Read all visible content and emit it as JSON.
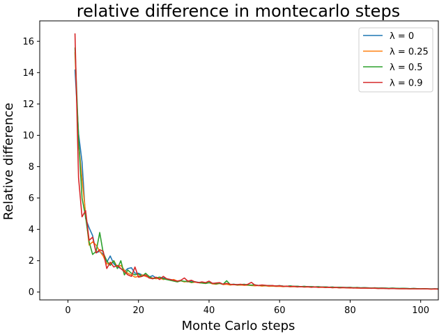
{
  "chart_data": {
    "type": "line",
    "title": "relative difference in montecarlo steps",
    "xlabel": "Monte Carlo steps",
    "ylabel": "Relative difference",
    "xlim": [
      -8,
      105
    ],
    "ylim": [
      -0.5,
      17.3
    ],
    "xticks": [
      0,
      20,
      40,
      60,
      80,
      100
    ],
    "yticks": [
      0,
      2,
      4,
      6,
      8,
      10,
      12,
      14,
      16
    ],
    "grid": false,
    "legend_position": "top-right",
    "x": [
      2,
      3,
      4,
      5,
      6,
      7,
      8,
      9,
      10,
      11,
      12,
      13,
      14,
      15,
      16,
      17,
      18,
      19,
      20,
      21,
      22,
      23,
      24,
      25,
      26,
      27,
      28,
      29,
      30,
      31,
      32,
      33,
      34,
      35,
      36,
      37,
      38,
      39,
      40,
      41,
      42,
      43,
      44,
      45,
      46,
      47,
      48,
      49,
      50,
      51,
      52,
      53,
      54,
      55,
      56,
      57,
      58,
      59,
      60,
      61,
      62,
      63,
      64,
      65,
      66,
      67,
      68,
      69,
      70,
      71,
      72,
      73,
      74,
      75,
      76,
      77,
      78,
      79,
      80,
      81,
      82,
      83,
      84,
      85,
      86,
      87,
      88,
      89,
      90,
      91,
      92,
      93,
      94,
      95,
      96,
      97,
      98,
      99,
      100,
      101,
      102,
      103,
      104,
      105
    ],
    "series": [
      {
        "name": "λ = 0",
        "color": "#1f77b4",
        "values": [
          14.2,
          10.1,
          8.3,
          4.7,
          4.1,
          3.6,
          2.5,
          2.6,
          2.4,
          1.9,
          2.3,
          1.8,
          1.6,
          1.5,
          1.3,
          1.5,
          1.55,
          1.2,
          1.2,
          1.1,
          1.0,
          0.95,
          1.05,
          0.9,
          0.95,
          0.9,
          0.85,
          0.8,
          0.75,
          0.7,
          0.72,
          0.68,
          0.65,
          0.7,
          0.66,
          0.62,
          0.6,
          0.58,
          0.6,
          0.56,
          0.54,
          0.55,
          0.5,
          0.52,
          0.48,
          0.5,
          0.47,
          0.46,
          0.48,
          0.45,
          0.44,
          0.46,
          0.42,
          0.43,
          0.41,
          0.42,
          0.4,
          0.39,
          0.41,
          0.38,
          0.37,
          0.39,
          0.36,
          0.37,
          0.35,
          0.36,
          0.34,
          0.35,
          0.33,
          0.34,
          0.32,
          0.33,
          0.31,
          0.32,
          0.3,
          0.31,
          0.3,
          0.29,
          0.3,
          0.28,
          0.29,
          0.27,
          0.28,
          0.27,
          0.26,
          0.27,
          0.25,
          0.26,
          0.25,
          0.24,
          0.25,
          0.24,
          0.23,
          0.24,
          0.23,
          0.22,
          0.23,
          0.22,
          0.21,
          0.22,
          0.21,
          0.2,
          0.21,
          0.2
        ]
      },
      {
        "name": "λ = 0.25",
        "color": "#ff7f0e",
        "values": [
          15.3,
          9.5,
          7.2,
          5.0,
          3.0,
          3.2,
          3.0,
          2.6,
          2.3,
          1.8,
          1.8,
          2.0,
          1.6,
          1.7,
          1.4,
          1.2,
          1.1,
          0.95,
          1.0,
          1.1,
          1.0,
          0.95,
          0.9,
          0.85,
          0.9,
          0.8,
          0.85,
          0.75,
          0.8,
          0.7,
          0.72,
          0.65,
          0.68,
          0.6,
          0.63,
          0.6,
          0.58,
          0.55,
          0.6,
          0.52,
          0.5,
          0.55,
          0.48,
          0.5,
          0.45,
          0.48,
          0.44,
          0.45,
          0.43,
          0.44,
          0.42,
          0.4,
          0.42,
          0.38,
          0.4,
          0.37,
          0.38,
          0.36,
          0.37,
          0.35,
          0.36,
          0.34,
          0.35,
          0.33,
          0.34,
          0.32,
          0.33,
          0.31,
          0.32,
          0.3,
          0.31,
          0.29,
          0.3,
          0.28,
          0.29,
          0.27,
          0.28,
          0.27,
          0.26,
          0.27,
          0.25,
          0.26,
          0.25,
          0.24,
          0.25,
          0.24,
          0.23,
          0.24,
          0.23,
          0.22,
          0.23,
          0.22,
          0.21,
          0.22,
          0.21,
          0.2,
          0.21,
          0.2,
          0.2,
          0.21,
          0.2,
          0.19,
          0.2,
          0.19
        ]
      },
      {
        "name": "λ = 0.5",
        "color": "#2ca02c",
        "values": [
          15.6,
          9.8,
          6.0,
          4.8,
          3.2,
          2.4,
          2.6,
          3.8,
          2.5,
          2.0,
          1.7,
          2.0,
          1.5,
          2.0,
          1.1,
          1.4,
          1.2,
          1.1,
          1.15,
          1.0,
          1.2,
          1.0,
          0.85,
          0.9,
          0.95,
          0.85,
          0.8,
          0.75,
          0.7,
          0.65,
          0.72,
          0.68,
          0.7,
          0.62,
          0.66,
          0.6,
          0.58,
          0.55,
          0.6,
          0.55,
          0.52,
          0.56,
          0.5,
          0.72,
          0.48,
          0.5,
          0.46,
          0.48,
          0.5,
          0.45,
          0.44,
          0.46,
          0.42,
          0.43,
          0.41,
          0.42,
          0.4,
          0.39,
          0.41,
          0.38,
          0.37,
          0.39,
          0.36,
          0.37,
          0.35,
          0.36,
          0.34,
          0.35,
          0.33,
          0.34,
          0.32,
          0.33,
          0.31,
          0.32,
          0.3,
          0.31,
          0.3,
          0.29,
          0.3,
          0.28,
          0.29,
          0.27,
          0.28,
          0.27,
          0.26,
          0.27,
          0.25,
          0.26,
          0.25,
          0.24,
          0.25,
          0.24,
          0.23,
          0.24,
          0.23,
          0.22,
          0.23,
          0.22,
          0.21,
          0.22,
          0.21,
          0.2,
          0.21,
          0.2
        ]
      },
      {
        "name": "λ = 0.9",
        "color": "#d62728",
        "values": [
          16.5,
          7.3,
          4.8,
          5.2,
          3.3,
          3.5,
          2.5,
          2.7,
          2.6,
          1.5,
          1.9,
          1.6,
          1.7,
          1.5,
          1.3,
          1.1,
          1.0,
          1.6,
          0.95,
          1.0,
          1.1,
          0.9,
          0.85,
          0.95,
          0.8,
          1.0,
          0.85,
          0.8,
          0.75,
          0.7,
          0.75,
          0.9,
          0.7,
          0.75,
          0.65,
          0.6,
          0.65,
          0.6,
          0.7,
          0.55,
          0.58,
          0.6,
          0.5,
          0.55,
          0.5,
          0.47,
          0.48,
          0.5,
          0.45,
          0.5,
          0.62,
          0.44,
          0.42,
          0.45,
          0.43,
          0.4,
          0.42,
          0.38,
          0.4,
          0.36,
          0.38,
          0.35,
          0.37,
          0.33,
          0.35,
          0.32,
          0.34,
          0.31,
          0.33,
          0.3,
          0.32,
          0.29,
          0.31,
          0.28,
          0.3,
          0.27,
          0.29,
          0.27,
          0.28,
          0.26,
          0.27,
          0.25,
          0.26,
          0.25,
          0.24,
          0.25,
          0.23,
          0.24,
          0.23,
          0.22,
          0.23,
          0.22,
          0.21,
          0.22,
          0.21,
          0.2,
          0.21,
          0.2,
          0.2,
          0.21,
          0.2,
          0.19,
          0.2,
          0.19
        ]
      }
    ]
  }
}
